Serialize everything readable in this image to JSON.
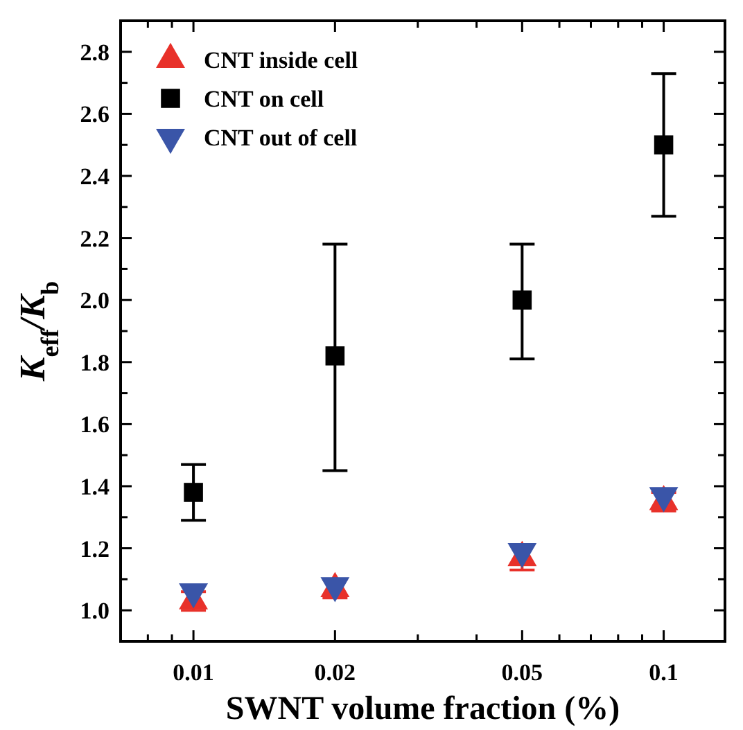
{
  "chart_data": {
    "type": "scatter",
    "xlabel": "SWNT volume fraction (%)",
    "ylabel": "K$_{eff}$/K$_{b}$",
    "log": "x",
    "x": [
      0.01,
      0.02,
      0.05,
      0.1
    ],
    "xlim": [
      0.007,
      0.135
    ],
    "xticks": [
      {
        "value": 0.008,
        "label": null
      },
      {
        "value": 0.009,
        "label": null
      },
      0.01,
      0.02,
      {
        "value": 0.03,
        "label": null
      },
      {
        "value": 0.04,
        "label": null
      },
      0.05,
      {
        "value": 0.06,
        "label": null
      },
      {
        "value": 0.07,
        "label": null
      },
      {
        "value": 0.08,
        "label": null
      },
      {
        "value": 0.09,
        "label": null
      },
      0.1
    ],
    "ylim": [
      0.9,
      2.9
    ],
    "yticks": [
      {
        "value": 1,
        "label": "1.0"
      },
      {
        "value": 1.1,
        "label": null
      },
      {
        "value": 1.2,
        "label": "1.2"
      },
      {
        "value": 1.3,
        "label": null
      },
      {
        "value": 1.4,
        "label": "1.4"
      },
      {
        "value": 1.5,
        "label": null
      },
      {
        "value": 1.6,
        "label": "1.6"
      },
      {
        "value": 1.7,
        "label": null
      },
      {
        "value": 1.8,
        "label": "1.8"
      },
      {
        "value": 1.9,
        "label": null
      },
      {
        "value": 2,
        "label": "2.0"
      },
      {
        "value": 2.1,
        "label": null
      },
      {
        "value": 2.2,
        "label": "2.2"
      },
      {
        "value": 2.3,
        "label": null
      },
      {
        "value": 2.4,
        "label": "2.4"
      },
      {
        "value": 2.5,
        "label": null
      },
      {
        "value": 2.6,
        "label": "2.6"
      },
      {
        "value": 2.7,
        "label": null
      },
      {
        "value": 2.8,
        "label": "2.8"
      }
    ],
    "legend": "top left",
    "grid": false,
    "series": [
      {
        "name": "CNT inside cell",
        "color": "#e8312a",
        "marker": "triangle",
        "values": [
          1.03,
          1.07,
          1.17,
          1.35
        ],
        "errors": [
          0.03,
          0.03,
          0.04,
          0.03
        ]
      },
      {
        "name": "CNT on cell",
        "color": "#000000",
        "marker": "square",
        "values": [
          1.38,
          1.82,
          2.0,
          2.5
        ],
        "errors": [
          [
            1.29,
            1.47
          ],
          [
            1.45,
            2.18
          ],
          [
            1.81,
            2.18
          ],
          [
            2.27,
            2.73
          ]
        ]
      },
      {
        "name": "CNT out of cell",
        "color": "#3a55a8",
        "marker": "triangle-down",
        "values": [
          1.06,
          1.08,
          1.19,
          1.37
        ]
      }
    ]
  }
}
